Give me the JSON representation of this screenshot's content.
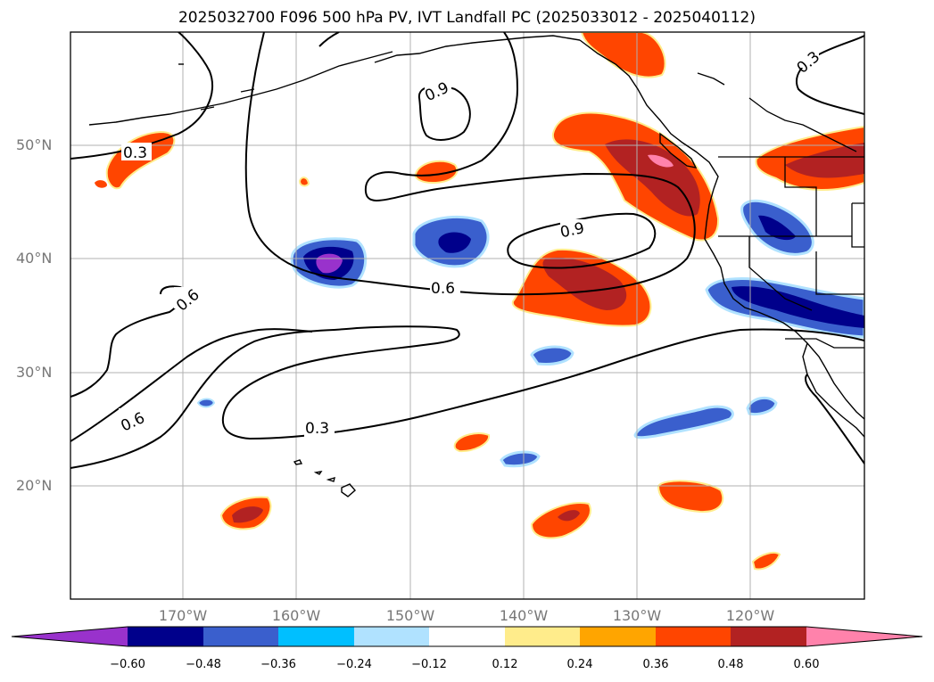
{
  "title": "2025032700 F096 500 hPa PV, IVT Landfall PC (2025033012 - 2025040112)",
  "lat_labels": [
    "50°N",
    "40°N",
    "30°N",
    "20°N"
  ],
  "lon_labels": [
    "170°W",
    "160°W",
    "150°W",
    "140°W",
    "130°W",
    "120°W"
  ],
  "contour_labels": [
    "0.3",
    "0.9",
    "0.6",
    "0.9",
    "0.6",
    "0.6",
    "0.3",
    "0.3"
  ],
  "colorbar": {
    "tick_labels": [
      "−0.60",
      "−0.48",
      "−0.36",
      "−0.24",
      "−0.12",
      "0.12",
      "0.24",
      "0.36",
      "0.48",
      "0.60"
    ],
    "colors": [
      "#9932cc",
      "#00008b",
      "#3a5fcd",
      "#00bfff",
      "#b0e2ff",
      "#ffffff",
      "#ffec8b",
      "#ffa500",
      "#ff4500",
      "#b22222",
      "#ff82ab"
    ]
  },
  "colors": {
    "positive": [
      "#ffec8b",
      "#ffa500",
      "#ff4500",
      "#b22222",
      "#ff82ab"
    ],
    "negative": [
      "#b0e2ff",
      "#00bfff",
      "#3a5fcd",
      "#00008b",
      "#9932cc"
    ],
    "grid": "#b0b0b0",
    "tick_label": "#777777"
  }
}
